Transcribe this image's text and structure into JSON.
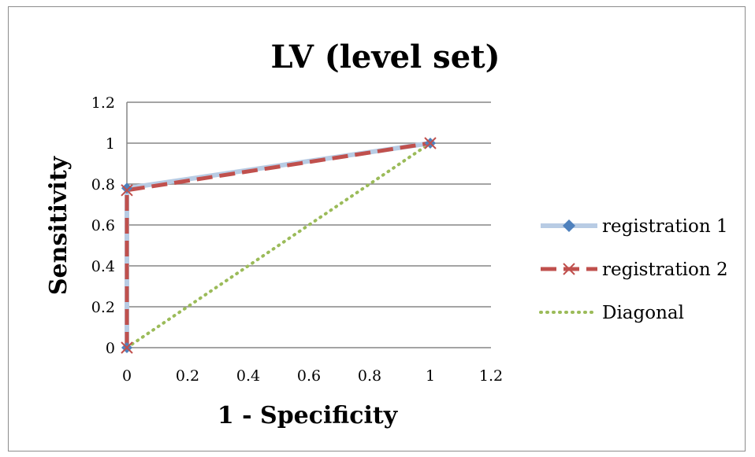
{
  "chart_data": {
    "type": "line",
    "title": "LV (level set)",
    "xlabel": "1 - Specificity",
    "ylabel": "Sensitivity",
    "xlim": [
      0,
      1.2
    ],
    "ylim": [
      0,
      1.2
    ],
    "x_ticks": [
      "0",
      "0.2",
      "0.4",
      "0.6",
      "0.8",
      "1",
      "1.2"
    ],
    "y_ticks": [
      "0",
      "0.2",
      "0.4",
      "0.6",
      "0.8",
      "1",
      "1.2"
    ],
    "grid": "horizontal",
    "legend_position": "right",
    "series": [
      {
        "name": "registration 1",
        "color": "#b8cce4",
        "marker": "diamond",
        "marker_color": "#4f81bd",
        "points": [
          [
            0,
            0
          ],
          [
            0,
            0.78
          ],
          [
            1,
            1
          ]
        ]
      },
      {
        "name": "registration 2",
        "color": "#c0504d",
        "marker": "x",
        "dash": "dashed",
        "points": [
          [
            0,
            0
          ],
          [
            0,
            0.77
          ],
          [
            1,
            1
          ]
        ]
      },
      {
        "name": "Diagonal",
        "color": "#9bbb59",
        "dash": "dotted",
        "points": [
          [
            0,
            0
          ],
          [
            1,
            1
          ]
        ]
      }
    ]
  }
}
